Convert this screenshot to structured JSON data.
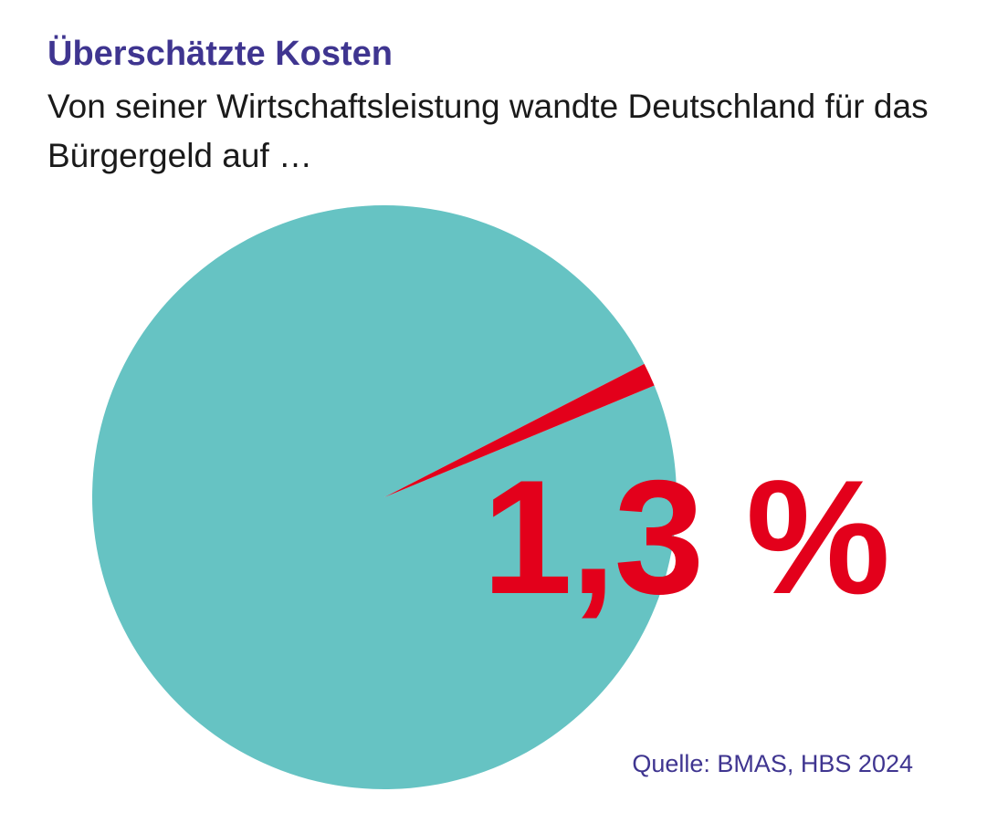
{
  "header": {
    "title": "Überschätzte Kosten",
    "subtitle": "Von seiner Wirtschaftsleistung wandte Deutschland für das Bürgergeld auf …"
  },
  "highlight": {
    "value_label": "1,3 %"
  },
  "footer": {
    "source": "Quelle: BMAS, HBS 2024"
  },
  "colors": {
    "remainder": "#66c3c3",
    "highlight": "#e3001b",
    "title": "#3f3590"
  },
  "chart_data": {
    "type": "pie",
    "title": "Überschätzte Kosten",
    "subtitle": "Von seiner Wirtschaftsleistung wandte Deutschland für das Bürgergeld auf …",
    "unit": "%",
    "slices": [
      {
        "value": 1.3,
        "label": "1,3 %",
        "color": "#e3001b"
      },
      {
        "value": 98.7,
        "color": "#66c3c3"
      }
    ]
  }
}
